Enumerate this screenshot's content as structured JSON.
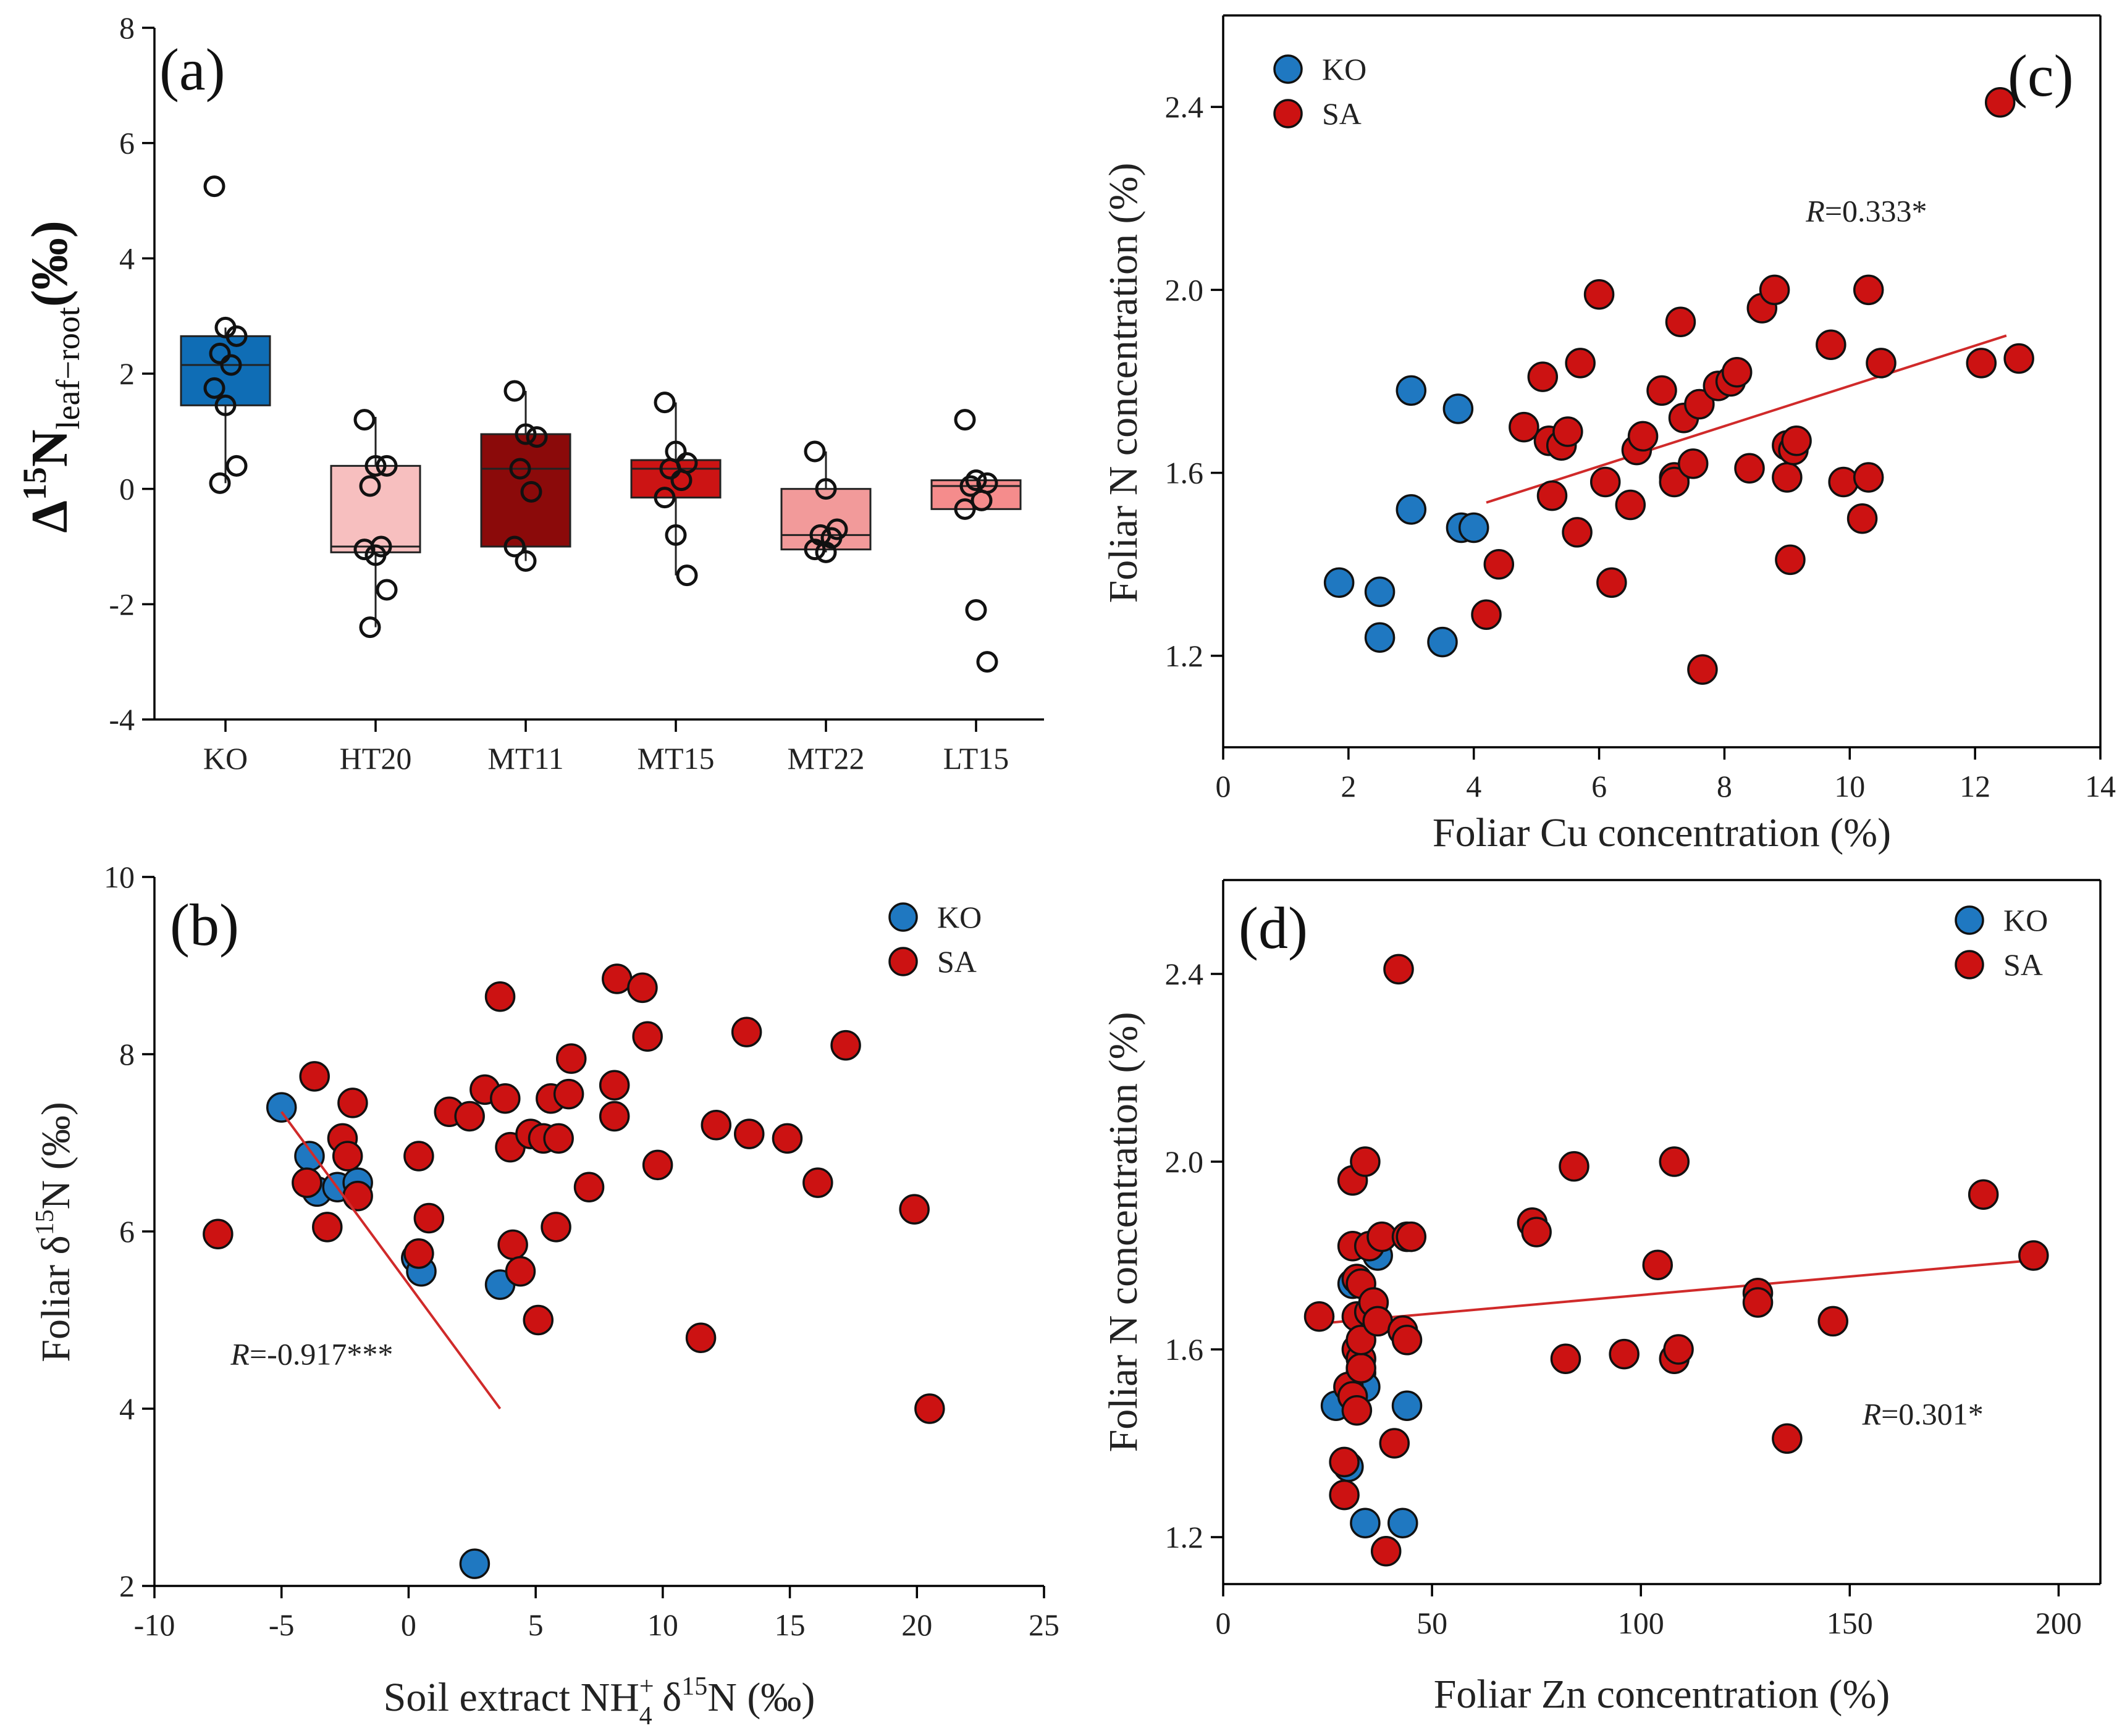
{
  "chart_data": [
    {
      "id": "a",
      "panel_label": "(a)",
      "type": "box",
      "ylabel": {
        "main": "Δ",
        "sup": "15",
        "n": "N",
        "sub": "leaf−root",
        "unit": "(‰)"
      },
      "ylim": [
        -4,
        8
      ],
      "yticks": [
        -4,
        -2,
        0,
        2,
        4,
        6,
        8
      ],
      "categories": [
        "KO",
        "HT20",
        "MT11",
        "MT15",
        "MT22",
        "LT15"
      ],
      "boxes": [
        {
          "name": "KO",
          "color": "#0f6db5",
          "q1": 1.45,
          "median": 2.15,
          "q3": 2.65,
          "whisker_low": 0.1,
          "whisker_high": 2.8,
          "points": [
            5.25,
            2.8,
            2.65,
            2.35,
            2.15,
            1.75,
            1.45,
            0.4,
            0.1
          ]
        },
        {
          "name": "HT20",
          "color": "#f7bfbf",
          "q1": -1.1,
          "median": -1.0,
          "q3": 0.4,
          "whisker_low": -2.4,
          "whisker_high": 1.25,
          "points": [
            1.2,
            0.4,
            0.4,
            0.05,
            -1.0,
            -1.05,
            -1.15,
            -1.75,
            -2.4
          ]
        },
        {
          "name": "MT11",
          "color": "#8b0a0a",
          "q1": -1.0,
          "median": 0.35,
          "q3": 0.95,
          "whisker_low": -1.25,
          "whisker_high": 1.7,
          "points": [
            1.7,
            0.95,
            0.9,
            0.35,
            -0.05,
            -1.0,
            -1.25
          ]
        },
        {
          "name": "MT15",
          "color": "#cc1414",
          "q1": -0.15,
          "median": 0.35,
          "q3": 0.5,
          "whisker_low": -1.5,
          "whisker_high": 1.5,
          "points": [
            1.5,
            0.65,
            0.45,
            0.35,
            0.15,
            -0.15,
            -0.8,
            -1.5
          ]
        },
        {
          "name": "MT22",
          "color": "#f29a9a",
          "q1": -1.05,
          "median": -0.8,
          "q3": 0.0,
          "whisker_low": -1.1,
          "whisker_high": 0.65,
          "points": [
            0.65,
            0.0,
            -0.7,
            -0.8,
            -0.85,
            -1.05,
            -1.1
          ]
        },
        {
          "name": "LT15",
          "color": "#f58c8c",
          "q1": -0.35,
          "median": 0.05,
          "q3": 0.15,
          "whisker_low": -0.35,
          "whisker_high": 0.15,
          "points": [
            1.2,
            0.15,
            0.1,
            0.05,
            -0.2,
            -0.35,
            -2.1,
            -3.0
          ]
        }
      ]
    },
    {
      "id": "b",
      "panel_label": "(b)",
      "type": "scatter",
      "xlabel": {
        "pre": "Soil extract NH",
        "sup": "+",
        "sub": "4",
        "post": " δ",
        "sup2": "15",
        "post2": "N (‰)"
      },
      "ylabel": {
        "pre": "Foliar δ",
        "sup": "15",
        "post": "N (‰)"
      },
      "xlim": [
        -10,
        25
      ],
      "ylim": [
        2,
        10
      ],
      "xticks": [
        -10,
        -5,
        0,
        5,
        10,
        15,
        20,
        25
      ],
      "yticks": [
        2,
        4,
        6,
        8,
        10
      ],
      "legend": [
        "KO",
        "SA"
      ],
      "annotation": {
        "r": "R",
        "text": "=-0.917***",
        "x": -7,
        "y": 4.5
      },
      "fit": {
        "x1": -5,
        "y1": 7.35,
        "x2": 3.6,
        "y2": 4.0
      },
      "series": [
        {
          "name": "KO",
          "color": "#1f78c1",
          "points": [
            [
              -5,
              7.4
            ],
            [
              -3.9,
              6.85
            ],
            [
              -3.6,
              6.45
            ],
            [
              -2.8,
              6.5
            ],
            [
              -2.0,
              6.55
            ],
            [
              0.3,
              5.7
            ],
            [
              0.5,
              5.55
            ],
            [
              3.6,
              5.4
            ],
            [
              2.6,
              2.25
            ]
          ]
        },
        {
          "name": "SA",
          "color": "#cc1212",
          "points": [
            [
              -7.5,
              5.97
            ],
            [
              -3.7,
              7.75
            ],
            [
              -4.0,
              6.55
            ],
            [
              -3.2,
              6.05
            ],
            [
              -2.6,
              7.05
            ],
            [
              -2.4,
              6.85
            ],
            [
              -2.2,
              7.45
            ],
            [
              -2.0,
              6.4
            ],
            [
              0.4,
              6.85
            ],
            [
              0.4,
              5.75
            ],
            [
              0.8,
              6.15
            ],
            [
              1.6,
              7.35
            ],
            [
              2.4,
              7.3
            ],
            [
              3.0,
              7.6
            ],
            [
              3.6,
              8.65
            ],
            [
              3.8,
              7.5
            ],
            [
              4.0,
              6.95
            ],
            [
              4.1,
              5.85
            ],
            [
              4.4,
              5.55
            ],
            [
              4.8,
              7.1
            ],
            [
              5.1,
              5.0
            ],
            [
              5.3,
              7.05
            ],
            [
              5.6,
              7.5
            ],
            [
              5.8,
              6.05
            ],
            [
              5.9,
              7.05
            ],
            [
              6.3,
              7.55
            ],
            [
              6.4,
              7.95
            ],
            [
              7.1,
              6.5
            ],
            [
              8.1,
              7.65
            ],
            [
              8.1,
              7.3
            ],
            [
              8.2,
              8.85
            ],
            [
              9.2,
              8.75
            ],
            [
              9.4,
              8.2
            ],
            [
              9.8,
              6.75
            ],
            [
              11.5,
              4.8
            ],
            [
              12.1,
              7.2
            ],
            [
              13.3,
              8.25
            ],
            [
              13.4,
              7.1
            ],
            [
              14.9,
              7.05
            ],
            [
              16.1,
              6.55
            ],
            [
              17.2,
              8.1
            ],
            [
              19.9,
              6.25
            ],
            [
              20.5,
              4.0
            ]
          ]
        }
      ]
    },
    {
      "id": "c",
      "panel_label": "(c)",
      "type": "scatter",
      "xlabel": "Foliar Cu concentration (%)",
      "ylabel": "Foliar N concentration (%)",
      "xlim": [
        0,
        14
      ],
      "ylim": [
        1.0,
        2.6
      ],
      "xticks": [
        0,
        2,
        4,
        6,
        8,
        10,
        12,
        14
      ],
      "yticks": [
        1.2,
        1.6,
        2.0,
        2.4
      ],
      "legend": [
        "KO",
        "SA"
      ],
      "annotation": {
        "r": "R",
        "text": "=0.333*",
        "x": 9.3,
        "y": 2.15
      },
      "fit": {
        "x1": 4.2,
        "y1": 1.535,
        "x2": 12.5,
        "y2": 1.9
      },
      "series": [
        {
          "name": "KO",
          "color": "#1f78c1",
          "points": [
            [
              1.85,
              1.36
            ],
            [
              2.5,
              1.34
            ],
            [
              2.5,
              1.24
            ],
            [
              3.0,
              1.78
            ],
            [
              3.0,
              1.52
            ],
            [
              3.5,
              1.23
            ],
            [
              3.75,
              1.74
            ],
            [
              3.8,
              1.48
            ],
            [
              4.0,
              1.48
            ]
          ]
        },
        {
          "name": "SA",
          "color": "#cc1212",
          "points": [
            [
              4.2,
              1.29
            ],
            [
              4.4,
              1.4
            ],
            [
              4.8,
              1.7
            ],
            [
              5.1,
              1.81
            ],
            [
              5.2,
              1.67
            ],
            [
              5.25,
              1.55
            ],
            [
              5.4,
              1.66
            ],
            [
              5.5,
              1.69
            ],
            [
              5.65,
              1.47
            ],
            [
              5.7,
              1.84
            ],
            [
              6.0,
              1.99
            ],
            [
              6.1,
              1.58
            ],
            [
              6.2,
              1.36
            ],
            [
              6.5,
              1.53
            ],
            [
              6.6,
              1.65
            ],
            [
              6.7,
              1.68
            ],
            [
              7.0,
              1.78
            ],
            [
              7.2,
              1.59
            ],
            [
              7.2,
              1.58
            ],
            [
              7.3,
              1.93
            ],
            [
              7.35,
              1.72
            ],
            [
              7.5,
              1.62
            ],
            [
              7.6,
              1.75
            ],
            [
              7.65,
              1.17
            ],
            [
              7.9,
              1.79
            ],
            [
              8.1,
              1.8
            ],
            [
              8.2,
              1.82
            ],
            [
              8.4,
              1.61
            ],
            [
              8.6,
              1.96
            ],
            [
              8.8,
              2.0
            ],
            [
              9.0,
              1.66
            ],
            [
              9.0,
              1.59
            ],
            [
              9.05,
              1.41
            ],
            [
              9.1,
              1.65
            ],
            [
              9.15,
              1.67
            ],
            [
              9.7,
              1.88
            ],
            [
              9.9,
              1.58
            ],
            [
              10.2,
              1.5
            ],
            [
              10.3,
              2.0
            ],
            [
              10.3,
              1.59
            ],
            [
              10.5,
              1.84
            ],
            [
              12.1,
              1.84
            ],
            [
              12.4,
              2.41
            ],
            [
              12.7,
              1.85
            ]
          ]
        }
      ]
    },
    {
      "id": "d",
      "panel_label": "(d)",
      "type": "scatter",
      "xlabel": "Foliar Zn concentration (%)",
      "ylabel": "Foliar N concentration (%)",
      "xlim": [
        0,
        210
      ],
      "ylim": [
        1.1,
        2.6
      ],
      "xticks": [
        0,
        50,
        100,
        150,
        200
      ],
      "yticks": [
        1.2,
        1.6,
        2.0,
        2.4
      ],
      "legend": [
        "KO",
        "SA"
      ],
      "annotation": {
        "r": "R",
        "text": "=0.301*",
        "x": 153,
        "y": 1.44
      },
      "fit": {
        "x1": 23,
        "y1": 1.655,
        "x2": 194,
        "y2": 1.79
      },
      "series": [
        {
          "name": "KO",
          "color": "#1f78c1",
          "points": [
            [
              27,
              1.48
            ],
            [
              31,
              1.74
            ],
            [
              33,
              1.55
            ],
            [
              34,
              1.52
            ],
            [
              34,
              1.23
            ],
            [
              37,
              1.8
            ],
            [
              43,
              1.23
            ],
            [
              44,
              1.48
            ],
            [
              30,
              1.35
            ]
          ]
        },
        {
          "name": "SA",
          "color": "#cc1212",
          "points": [
            [
              23,
              1.67
            ],
            [
              29,
              1.36
            ],
            [
              29,
              1.29
            ],
            [
              30,
              1.52
            ],
            [
              31,
              1.96
            ],
            [
              31,
              1.82
            ],
            [
              31,
              1.5
            ],
            [
              32,
              1.47
            ],
            [
              32,
              1.67
            ],
            [
              32,
              1.75
            ],
            [
              32,
              1.6
            ],
            [
              33,
              1.58
            ],
            [
              33,
              1.56
            ],
            [
              33,
              1.62
            ],
            [
              33,
              1.74
            ],
            [
              34,
              2.0
            ],
            [
              35,
              1.82
            ],
            [
              35,
              1.68
            ],
            [
              36,
              1.7
            ],
            [
              37,
              1.66
            ],
            [
              38,
              1.84
            ],
            [
              39,
              1.17
            ],
            [
              41,
              1.4
            ],
            [
              42,
              2.41
            ],
            [
              43,
              1.64
            ],
            [
              44,
              1.62
            ],
            [
              44,
              1.84
            ],
            [
              45,
              1.84
            ],
            [
              74,
              1.87
            ],
            [
              75,
              1.85
            ],
            [
              82,
              1.58
            ],
            [
              84,
              1.99
            ],
            [
              96,
              1.59
            ],
            [
              104,
              1.78
            ],
            [
              108,
              1.58
            ],
            [
              108,
              2.0
            ],
            [
              109,
              1.6
            ],
            [
              128,
              1.72
            ],
            [
              128,
              1.7
            ],
            [
              135,
              1.41
            ],
            [
              146,
              1.66
            ],
            [
              182,
              1.93
            ],
            [
              194,
              1.8
            ]
          ]
        }
      ]
    }
  ]
}
